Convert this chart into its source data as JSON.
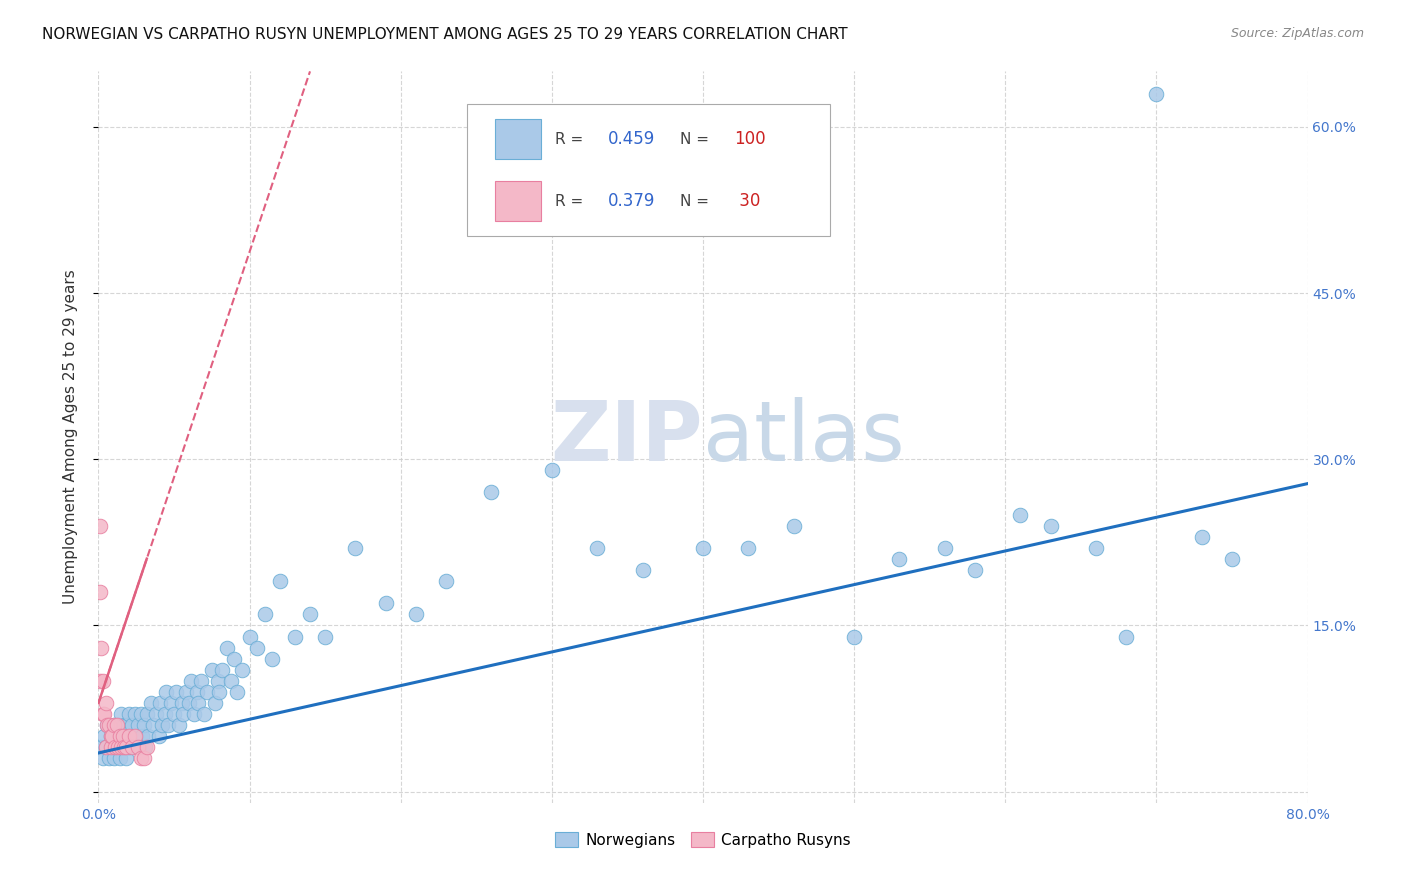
{
  "title": "NORWEGIAN VS CARPATHO RUSYN UNEMPLOYMENT AMONG AGES 25 TO 29 YEARS CORRELATION CHART",
  "source": "Source: ZipAtlas.com",
  "ylabel": "Unemployment Among Ages 25 to 29 years",
  "xlim": [
    0,
    0.8
  ],
  "ylim": [
    -0.01,
    0.65
  ],
  "ytick_positions": [
    0.0,
    0.15,
    0.3,
    0.45,
    0.6
  ],
  "yticklabels_right": [
    "",
    "15.0%",
    "30.0%",
    "45.0%",
    "60.0%"
  ],
  "xtick_positions": [
    0.0,
    0.1,
    0.2,
    0.3,
    0.4,
    0.5,
    0.6,
    0.7,
    0.8
  ],
  "xticklabels": [
    "0.0%",
    "",
    "",
    "",
    "",
    "",
    "",
    "",
    "80.0%"
  ],
  "norwegian_color": "#aac9e8",
  "norwegian_edge": "#6aaed6",
  "carpatho_color": "#f4b8c8",
  "carpatho_edge": "#e87fa0",
  "trend_norwegian_color": "#1f6fbf",
  "trend_carpatho_color": "#e06080",
  "background_color": "#ffffff",
  "grid_color": "#cccccc",
  "title_fontsize": 11,
  "axis_label_fontsize": 11,
  "tick_fontsize": 10,
  "watermark_fontsize": 60,
  "norwegian_x": [
    0.002,
    0.003,
    0.004,
    0.005,
    0.006,
    0.007,
    0.008,
    0.009,
    0.01,
    0.01,
    0.011,
    0.012,
    0.013,
    0.014,
    0.015,
    0.015,
    0.016,
    0.017,
    0.018,
    0.018,
    0.019,
    0.02,
    0.02,
    0.021,
    0.022,
    0.023,
    0.024,
    0.025,
    0.026,
    0.027,
    0.028,
    0.029,
    0.03,
    0.031,
    0.032,
    0.033,
    0.035,
    0.036,
    0.038,
    0.04,
    0.041,
    0.042,
    0.044,
    0.045,
    0.046,
    0.048,
    0.05,
    0.051,
    0.053,
    0.055,
    0.056,
    0.058,
    0.06,
    0.061,
    0.063,
    0.065,
    0.066,
    0.068,
    0.07,
    0.072,
    0.075,
    0.077,
    0.079,
    0.08,
    0.082,
    0.085,
    0.088,
    0.09,
    0.092,
    0.095,
    0.1,
    0.105,
    0.11,
    0.115,
    0.12,
    0.13,
    0.14,
    0.15,
    0.17,
    0.19,
    0.21,
    0.23,
    0.26,
    0.3,
    0.33,
    0.36,
    0.4,
    0.43,
    0.46,
    0.5,
    0.53,
    0.56,
    0.58,
    0.61,
    0.63,
    0.66,
    0.68,
    0.7,
    0.73,
    0.75
  ],
  "norwegian_y": [
    0.04,
    0.03,
    0.05,
    0.04,
    0.06,
    0.03,
    0.05,
    0.04,
    0.06,
    0.03,
    0.05,
    0.04,
    0.06,
    0.03,
    0.05,
    0.07,
    0.04,
    0.06,
    0.05,
    0.03,
    0.06,
    0.04,
    0.07,
    0.05,
    0.06,
    0.04,
    0.07,
    0.05,
    0.06,
    0.04,
    0.07,
    0.05,
    0.06,
    0.04,
    0.07,
    0.05,
    0.08,
    0.06,
    0.07,
    0.05,
    0.08,
    0.06,
    0.07,
    0.09,
    0.06,
    0.08,
    0.07,
    0.09,
    0.06,
    0.08,
    0.07,
    0.09,
    0.08,
    0.1,
    0.07,
    0.09,
    0.08,
    0.1,
    0.07,
    0.09,
    0.11,
    0.08,
    0.1,
    0.09,
    0.11,
    0.13,
    0.1,
    0.12,
    0.09,
    0.11,
    0.14,
    0.13,
    0.16,
    0.12,
    0.19,
    0.14,
    0.16,
    0.14,
    0.22,
    0.17,
    0.16,
    0.19,
    0.27,
    0.29,
    0.22,
    0.2,
    0.22,
    0.22,
    0.24,
    0.14,
    0.21,
    0.22,
    0.2,
    0.25,
    0.24,
    0.22,
    0.14,
    0.63,
    0.23,
    0.21
  ],
  "carpatho_x": [
    0.001,
    0.001,
    0.001,
    0.002,
    0.003,
    0.003,
    0.004,
    0.005,
    0.005,
    0.006,
    0.007,
    0.008,
    0.008,
    0.009,
    0.01,
    0.011,
    0.012,
    0.013,
    0.014,
    0.015,
    0.016,
    0.017,
    0.018,
    0.02,
    0.022,
    0.024,
    0.026,
    0.028,
    0.03,
    0.032
  ],
  "carpatho_y": [
    0.24,
    0.18,
    0.1,
    0.13,
    0.1,
    0.07,
    0.07,
    0.08,
    0.04,
    0.06,
    0.06,
    0.04,
    0.05,
    0.05,
    0.06,
    0.04,
    0.06,
    0.04,
    0.05,
    0.04,
    0.05,
    0.04,
    0.04,
    0.05,
    0.04,
    0.05,
    0.04,
    0.03,
    0.03,
    0.04
  ],
  "nor_trend_x0": 0.0,
  "nor_trend_y0": 0.035,
  "nor_trend_x1": 0.8,
  "nor_trend_y1": 0.278,
  "car_trend_x0": 0.0,
  "car_trend_y0": 0.08,
  "car_trend_x1": 0.14,
  "car_trend_y1": 0.65
}
